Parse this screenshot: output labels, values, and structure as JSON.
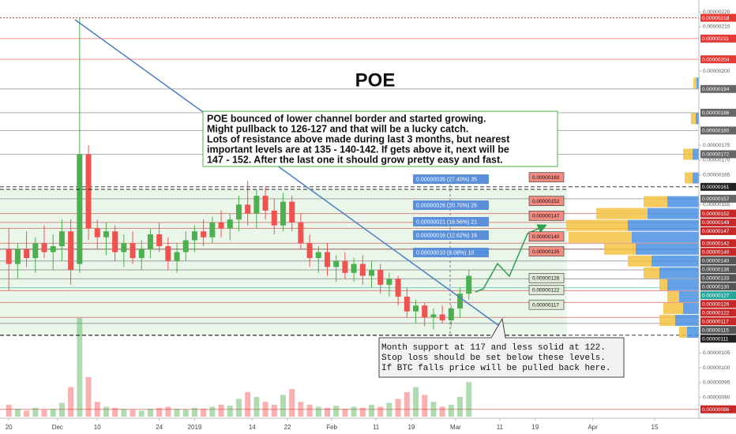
{
  "chart_data": {
    "type": "candlestick",
    "title": "POE",
    "xlim": [
      "2018-11-18",
      "2019-04-25"
    ],
    "xticks": [
      {
        "value": "2018-11-20",
        "label": "20"
      },
      {
        "value": "2018-12-01",
        "label": "Dec"
      },
      {
        "value": "2018-12-10",
        "label": "10"
      },
      {
        "value": "2018-12-24",
        "label": "24"
      },
      {
        "value": "2019-01-01",
        "label": "2019"
      },
      {
        "value": "2019-01-14",
        "label": "14"
      },
      {
        "value": "2019-01-22",
        "label": "22"
      },
      {
        "value": "2019-02-01",
        "label": "Feb"
      },
      {
        "value": "2019-02-11",
        "label": "11"
      },
      {
        "value": "2019-02-19",
        "label": "19"
      },
      {
        "value": "2019-03-01",
        "label": "Mar"
      },
      {
        "value": "2019-03-11",
        "label": "11"
      },
      {
        "value": "2019-03-19",
        "label": "19"
      },
      {
        "value": "2019-04-01",
        "label": "Apr"
      },
      {
        "value": "2019-04-15",
        "label": "15"
      }
    ],
    "ylim": [
      8.3e-07,
      2.24e-06
    ],
    "yticks": [
      {
        "value": 2.2e-06,
        "label": "0.00000220"
      },
      2.15e-06,
      {
        "value": 2e-06,
        "label": "0.00000200"
      },
      1.75e-06,
      {
        "value": 1.7e-06,
        "label": "0.00000170"
      },
      1.65e-06,
      1.55e-06,
      1.05e-06,
      {
        "value": 1e-06,
        "label": "0.00000100"
      },
      {
        "value": 9.5e-07,
        "label": "0.00000095"
      },
      {
        "value": 9e-07,
        "label": "0.00000090"
      }
    ],
    "up_color": "#4caf50",
    "down_color": "#ef5350",
    "x": [
      "2018-11-20",
      "2018-11-22",
      "2018-11-24",
      "2018-11-26",
      "2018-11-28",
      "2018-11-30",
      "2018-12-02",
      "2018-12-04",
      "2018-12-06",
      "2018-12-08",
      "2018-12-10",
      "2018-12-12",
      "2018-12-14",
      "2018-12-16",
      "2018-12-18",
      "2018-12-20",
      "2018-12-22",
      "2018-12-24",
      "2018-12-26",
      "2018-12-28",
      "2018-12-30",
      "2019-01-01",
      "2019-01-03",
      "2019-01-05",
      "2019-01-07",
      "2019-01-09",
      "2019-01-11",
      "2019-01-13",
      "2019-01-15",
      "2019-01-17",
      "2019-01-19",
      "2019-01-21",
      "2019-01-23",
      "2019-01-25",
      "2019-01-27",
      "2019-01-29",
      "2019-01-31",
      "2019-02-02",
      "2019-02-04",
      "2019-02-06",
      "2019-02-08",
      "2019-02-10",
      "2019-02-12",
      "2019-02-14",
      "2019-02-16",
      "2019-02-18",
      "2019-02-20",
      "2019-02-22",
      "2019-02-24",
      "2019-02-26",
      "2019-02-28",
      "2019-03-02",
      "2019-03-04"
    ],
    "open": [
      1.4e-06,
      1.35e-06,
      1.4e-06,
      1.37e-06,
      1.42e-06,
      1.39e-06,
      1.41e-06,
      1.46e-06,
      1.35e-06,
      1.72e-06,
      1.47e-06,
      1.44e-06,
      1.46e-06,
      1.39e-06,
      1.42e-06,
      1.37e-06,
      1.4e-06,
      1.45e-06,
      1.41e-06,
      1.36e-06,
      1.39e-06,
      1.43e-06,
      1.46e-06,
      1.44e-06,
      1.49e-06,
      1.47e-06,
      1.5e-06,
      1.55e-06,
      1.52e-06,
      1.58e-06,
      1.53e-06,
      1.48e-06,
      1.56e-06,
      1.49e-06,
      1.42e-06,
      1.37e-06,
      1.39e-06,
      1.34e-06,
      1.36e-06,
      1.32e-06,
      1.35e-06,
      1.31e-06,
      1.33e-06,
      1.28e-06,
      1.3e-06,
      1.24e-06,
      1.19e-06,
      1.21e-06,
      1.17e-06,
      1.18e-06,
      1.16e-06,
      1.2e-06,
      1.25e-06
    ],
    "high": [
      1.47e-06,
      1.42e-06,
      1.46e-06,
      1.44e-06,
      1.48e-06,
      1.45e-06,
      1.5e-06,
      1.5e-06,
      2.18e-06,
      1.75e-06,
      1.5e-06,
      1.49e-06,
      1.48e-06,
      1.45e-06,
      1.46e-06,
      1.43e-06,
      1.47e-06,
      1.49e-06,
      1.44e-06,
      1.42e-06,
      1.46e-06,
      1.48e-06,
      1.5e-06,
      1.51e-06,
      1.53e-06,
      1.52e-06,
      1.58e-06,
      1.63e-06,
      1.6e-06,
      1.61e-06,
      1.57e-06,
      1.59e-06,
      1.58e-06,
      1.52e-06,
      1.45e-06,
      1.41e-06,
      1.42e-06,
      1.38e-06,
      1.39e-06,
      1.37e-06,
      1.38e-06,
      1.36e-06,
      1.35e-06,
      1.32e-06,
      1.31e-06,
      1.27e-06,
      1.23e-06,
      1.22e-06,
      1.2e-06,
      1.21e-06,
      1.21e-06,
      1.27e-06,
      1.33e-06
    ],
    "low": [
      1.26e-06,
      1.3e-06,
      1.34e-06,
      1.32e-06,
      1.37e-06,
      1.33e-06,
      1.36e-06,
      1.28e-06,
      1.32e-06,
      1.43e-06,
      1.4e-06,
      1.38e-06,
      1.36e-06,
      1.34e-06,
      1.35e-06,
      1.33e-06,
      1.37e-06,
      1.39e-06,
      1.33e-06,
      1.32e-06,
      1.36e-06,
      1.39e-06,
      1.41e-06,
      1.42e-06,
      1.44e-06,
      1.43e-06,
      1.46e-06,
      1.48e-06,
      1.47e-06,
      1.5e-06,
      1.45e-06,
      1.46e-06,
      1.46e-06,
      1.4e-06,
      1.34e-06,
      1.32e-06,
      1.31e-06,
      1.29e-06,
      1.3e-06,
      1.29e-06,
      1.28e-06,
      1.27e-06,
      1.25e-06,
      1.24e-06,
      1.21e-06,
      1.17e-06,
      1.15e-06,
      1.14e-06,
      1.13e-06,
      1.15e-06,
      1.14e-06,
      1.17e-06,
      1.23e-06
    ],
    "close": [
      1.35e-06,
      1.4e-06,
      1.37e-06,
      1.42e-06,
      1.39e-06,
      1.41e-06,
      1.46e-06,
      1.33e-06,
      1.72e-06,
      1.47e-06,
      1.44e-06,
      1.46e-06,
      1.39e-06,
      1.42e-06,
      1.37e-06,
      1.4e-06,
      1.45e-06,
      1.41e-06,
      1.36e-06,
      1.39e-06,
      1.43e-06,
      1.46e-06,
      1.44e-06,
      1.49e-06,
      1.47e-06,
      1.5e-06,
      1.55e-06,
      1.52e-06,
      1.58e-06,
      1.53e-06,
      1.48e-06,
      1.56e-06,
      1.49e-06,
      1.42e-06,
      1.37e-06,
      1.39e-06,
      1.34e-06,
      1.36e-06,
      1.32e-06,
      1.35e-06,
      1.31e-06,
      1.33e-06,
      1.28e-06,
      1.3e-06,
      1.24e-06,
      1.19e-06,
      1.21e-06,
      1.17e-06,
      1.18e-06,
      1.16e-06,
      1.2e-06,
      1.25e-06,
      1.31e-06
    ],
    "volume": [
      12,
      8,
      6,
      9,
      7,
      8,
      14,
      30,
      100,
      40,
      15,
      10,
      9,
      8,
      7,
      6,
      8,
      9,
      10,
      8,
      7,
      9,
      8,
      10,
      12,
      11,
      18,
      25,
      20,
      15,
      12,
      22,
      28,
      15,
      12,
      10,
      9,
      11,
      8,
      10,
      9,
      12,
      10,
      14,
      18,
      25,
      30,
      22,
      15,
      10,
      12,
      20,
      35
    ],
    "levels": [
      {
        "value": 2.18e-06,
        "label": "0.00000218",
        "color": "#e53935",
        "style": "dotted"
      },
      {
        "value": 2.11e-06,
        "label": "0.00000211",
        "color": "#e53935",
        "style": "solid"
      },
      {
        "value": 2.04e-06,
        "label": "0.00000204",
        "color": "#e53935",
        "style": "solid"
      },
      {
        "value": 1.94e-06,
        "label": "0.00000194",
        "color": "#666666",
        "style": "solid"
      },
      {
        "value": 1.86e-06,
        "label": "0.00000186",
        "color": "#666666",
        "style": "solid"
      },
      {
        "value": 1.8e-06,
        "label": "0.00000180",
        "color": "#666666",
        "style": "solid"
      },
      {
        "value": 1.72e-06,
        "label": "0.00000172",
        "color": "#666666",
        "style": "solid"
      },
      {
        "value": 1.61e-06,
        "label": "0.00000161",
        "color": "#222222",
        "style": "dashed"
      },
      {
        "value": 1.57e-06,
        "label": "0.00000157",
        "color": "#666666",
        "style": "solid"
      },
      {
        "value": 1.52e-06,
        "label": "0.00000152",
        "color": "#c62828",
        "style": "solid"
      },
      {
        "value": 1.49e-06,
        "label": "0.00000149",
        "color": "#c62828",
        "style": "solid"
      },
      {
        "value": 1.47e-06,
        "label": "0.00000147",
        "color": "#c62828",
        "style": "solid"
      },
      {
        "value": 1.42e-06,
        "label": "0.00000142",
        "color": "#c62828",
        "style": "solid"
      },
      {
        "value": 1.4e-06,
        "label": "0.00000140",
        "color": "#c62828",
        "style": "solid"
      },
      {
        "value": 1.4e-06,
        "label": "0.00000140",
        "color": "#555555",
        "style": "solid"
      },
      {
        "value": 1.36e-06,
        "label": "0.00000136",
        "color": "#555555",
        "style": "solid"
      },
      {
        "value": 1.33e-06,
        "label": "0.00000133",
        "color": "#555555",
        "style": "solid"
      },
      {
        "value": 1.3e-06,
        "label": "0.00000130",
        "color": "#555555",
        "style": "solid"
      },
      {
        "value": 1.27e-06,
        "label": "0.00000127",
        "color": "#26a69a",
        "style": "solid"
      },
      {
        "value": 1.26e-06,
        "label": "0.00000126",
        "color": "#c62828",
        "style": "solid"
      },
      {
        "value": 1.22e-06,
        "label": "0.00000122",
        "color": "#c62828",
        "style": "solid"
      },
      {
        "value": 1.17e-06,
        "label": "0.00000117",
        "color": "#c62828",
        "style": "solid"
      },
      {
        "value": 1.15e-06,
        "label": "0.00000115",
        "color": "#555555",
        "style": "solid"
      },
      {
        "value": 1.11e-06,
        "label": "0.00000111",
        "color": "#222222",
        "style": "dashed"
      },
      {
        "value": 8.6e-07,
        "label": "0.00000086",
        "color": "#c62828",
        "style": "solid"
      }
    ],
    "volume_profile": {
      "prices": [
        1.96e-06,
        1.84e-06,
        1.72e-06,
        1.64e-06,
        1.56e-06,
        1.52e-06,
        1.48e-06,
        1.44e-06,
        1.4e-06,
        1.36e-06,
        1.32e-06,
        1.28e-06,
        1.24e-06,
        1.2e-06,
        1.16e-06,
        1.12e-06
      ],
      "buy": [
        3,
        4,
        8,
        8,
        40,
        65,
        90,
        85,
        80,
        60,
        50,
        40,
        25,
        20,
        30,
        15
      ],
      "sell": [
        4,
        6,
        12,
        10,
        30,
        65,
        78,
        80,
        40,
        30,
        20,
        10,
        15,
        25,
        20,
        10
      ],
      "buy_color": "#4a90e2",
      "sell_color": "#f5c242"
    },
    "targets": [
      {
        "value": 1.6e-06,
        "label": "0.00000160",
        "color": "#f28b82"
      },
      {
        "value": 1.52e-06,
        "label": "0.00000152",
        "color": "#f28b82"
      },
      {
        "value": 1.47e-06,
        "label": "0.00000147",
        "color": "#f28b82"
      },
      {
        "value": 1.4e-06,
        "label": "0.00000140",
        "color": "#f28b82"
      },
      {
        "value": 1.35e-06,
        "label": "0.00000135",
        "color": "#f28b82"
      },
      {
        "value": 1.26e-06,
        "label": "0.00000126",
        "color": "#dfe9d6"
      },
      {
        "value": 1.22e-06,
        "label": "0.00000122",
        "color": "#dfe9d6"
      },
      {
        "value": 1.17e-06,
        "label": "0.00000117",
        "color": "#dfe9d6"
      }
    ],
    "measurements": [
      "0.00000035 (27.40%) 35",
      "0.00000026 (20.70%) 26",
      "0.00000021 (16.56%) 21",
      "0.00000016 (12.62%) 16",
      "0.00000010 (8.08%) 10"
    ],
    "note": [
      "POE bounced of lower channel border and started growing.",
      "Might pullback to 126-127 and that will be a lucky catch.",
      "Lots of resistance above made during last 3 months, but nearest",
      "important levels are at 135 - 140-142. If gets above it, next will be",
      "147 - 152. After the last one it should grow pretty easy and fast."
    ],
    "support_note": [
      "Month support at 117 and less solid at 122.",
      "Stop loss should be set below these levels.",
      "If BTC falls price will be pulled back here."
    ]
  }
}
